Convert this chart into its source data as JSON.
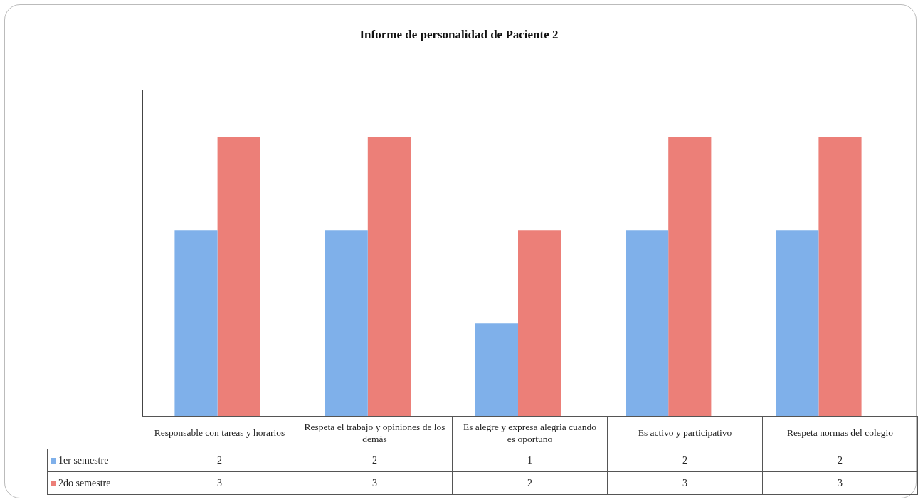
{
  "chart_data": {
    "type": "bar",
    "title": "Informe de personalidad de Paciente 2",
    "categories": [
      "Responsable con tareas y horarios",
      "Respeta el trabajo y opiniones de los demás",
      "Es alegre y expresa alegria cuando es oportuno",
      "Es activo y participativo",
      "Respeta normas del colegio"
    ],
    "series": [
      {
        "name": "1er semestre",
        "color": "#7fb0ea",
        "values": [
          2,
          2,
          1,
          2,
          2
        ]
      },
      {
        "name": "2do semestre",
        "color": "#ec7f78",
        "values": [
          3,
          3,
          2,
          3,
          3
        ]
      }
    ],
    "ylim": [
      0,
      3.5
    ],
    "tick_labels": false,
    "grid": false,
    "legend": "bottom",
    "data_labels": true
  }
}
